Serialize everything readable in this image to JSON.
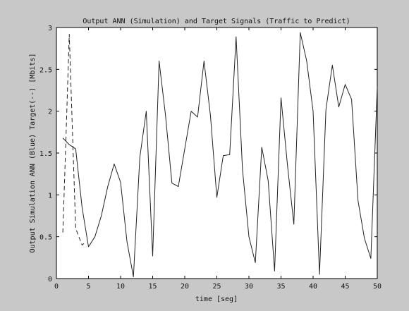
{
  "chart_data": {
    "type": "line",
    "title": "Output ANN (Simulation) and Target Signals (Traffic to Predict)",
    "xlabel": "time [seg]",
    "ylabel": "Output Simulation ANN (Blue) Target(--) [Mbits]",
    "xlim": [
      0,
      50
    ],
    "ylim": [
      0,
      3
    ],
    "xticks": [
      "0",
      "5",
      "10",
      "15",
      "20",
      "25",
      "30",
      "35",
      "40",
      "45",
      "50"
    ],
    "yticks": [
      "0",
      "0.5",
      "1",
      "1.5",
      "2",
      "2.5",
      "3"
    ],
    "grid": false,
    "series": [
      {
        "style": "solid",
        "color": "#222222",
        "x": [
          1,
          2,
          3,
          4,
          5,
          6,
          7,
          8,
          9,
          10,
          11,
          12,
          13,
          14,
          15,
          16,
          17,
          18,
          19,
          20,
          21,
          22,
          23,
          24,
          25,
          26,
          27,
          28,
          29,
          30,
          31,
          32,
          33,
          34,
          35,
          36,
          37,
          38,
          39,
          40,
          41,
          42,
          43,
          44,
          45,
          46,
          47,
          48,
          49,
          50
        ],
        "y": [
          1.68,
          1.6,
          1.55,
          0.85,
          0.38,
          0.5,
          0.75,
          1.1,
          1.37,
          1.15,
          0.44,
          0.02,
          1.45,
          2.0,
          0.27,
          2.6,
          1.95,
          1.14,
          1.1,
          1.55,
          2.0,
          1.93,
          2.6,
          1.95,
          0.97,
          1.47,
          1.48,
          2.89,
          1.3,
          0.5,
          0.19,
          1.57,
          1.17,
          0.09,
          2.16,
          1.36,
          0.65,
          2.94,
          2.6,
          2.0,
          0.05,
          2.02,
          2.55,
          2.05,
          2.32,
          2.14,
          0.93,
          0.48,
          0.24,
          2.29
        ]
      },
      {
        "style": "dashed",
        "color": "#222222",
        "x": [
          1,
          1.5,
          2,
          3,
          3.5,
          4,
          4.3
        ],
        "y": [
          0.55,
          1.72,
          2.92,
          0.6,
          0.5,
          0.4,
          0.42
        ]
      }
    ]
  }
}
